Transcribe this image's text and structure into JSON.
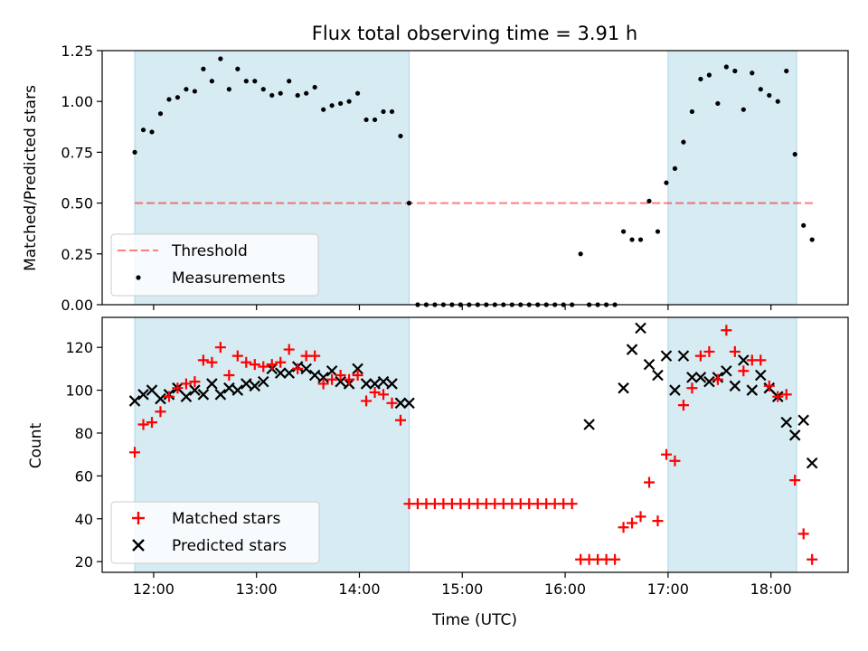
{
  "title": "Flux total observing time = 3.91 h",
  "colors": {
    "shade": "#add8e6",
    "threshold": "#ff0000",
    "measurements": "#000000",
    "matched": "#ff0000",
    "predicted": "#000000"
  },
  "chart_data": [
    {
      "type": "scatter",
      "ylabel": "Matched/Predicted stars",
      "xlabel": "",
      "ylim": [
        0.0,
        1.25
      ],
      "yticks": [
        "0.00",
        "0.25",
        "0.50",
        "0.75",
        "1.00",
        "1.25"
      ],
      "shaded_spans": [
        [
          "11:49",
          "14:29"
        ],
        [
          "17:00",
          "18:15"
        ]
      ],
      "threshold": {
        "name": "Threshold",
        "value": 0.5,
        "x_range": [
          "11:49",
          "18:25"
        ]
      },
      "legend": {
        "placement": "lower-left",
        "entries": [
          "Threshold",
          "Measurements"
        ]
      },
      "series": [
        {
          "name": "Measurements",
          "marker": "dot",
          "x": [
            "11:49",
            "11:54",
            "11:59",
            "12:04",
            "12:09",
            "12:14",
            "12:19",
            "12:24",
            "12:29",
            "12:34",
            "12:39",
            "12:44",
            "12:49",
            "12:54",
            "12:59",
            "13:04",
            "13:09",
            "13:14",
            "13:19",
            "13:24",
            "13:29",
            "13:34",
            "13:39",
            "13:44",
            "13:49",
            "13:54",
            "13:59",
            "14:04",
            "14:09",
            "14:14",
            "14:19",
            "14:24",
            "14:29",
            "14:34",
            "14:39",
            "14:44",
            "14:49",
            "14:54",
            "14:59",
            "15:04",
            "15:09",
            "15:14",
            "15:19",
            "15:24",
            "15:29",
            "15:34",
            "15:39",
            "15:44",
            "15:49",
            "15:54",
            "15:59",
            "16:04",
            "16:09",
            "16:14",
            "16:19",
            "16:24",
            "16:29",
            "16:34",
            "16:39",
            "16:44",
            "16:49",
            "16:54",
            "16:59",
            "17:04",
            "17:09",
            "17:14",
            "17:19",
            "17:24",
            "17:29",
            "17:34",
            "17:39",
            "17:44",
            "17:49",
            "17:54",
            "17:59",
            "18:04",
            "18:09",
            "18:14",
            "18:19",
            "18:24"
          ],
          "y": [
            0.75,
            0.86,
            0.85,
            0.94,
            1.01,
            1.02,
            1.06,
            1.05,
            1.16,
            1.1,
            1.21,
            1.06,
            1.16,
            1.1,
            1.1,
            1.06,
            1.03,
            1.04,
            1.1,
            1.03,
            1.04,
            1.07,
            0.96,
            0.98,
            0.99,
            1.0,
            1.04,
            0.91,
            0.91,
            0.95,
            0.95,
            0.83,
            0.5,
            0,
            0,
            0,
            0,
            0,
            0,
            0,
            0,
            0,
            0,
            0,
            0,
            0,
            0,
            0,
            0,
            0,
            0,
            0,
            0.25,
            0,
            0,
            0,
            0,
            0.36,
            0.32,
            0.32,
            0.51,
            0.36,
            0.6,
            0.67,
            0.8,
            0.95,
            1.11,
            1.13,
            0.99,
            1.17,
            1.15,
            0.96,
            1.14,
            1.06,
            1.03,
            1.0,
            1.15,
            0.74,
            0.39,
            0.32
          ]
        }
      ]
    },
    {
      "type": "scatter",
      "xlabel": "Time (UTC)",
      "ylabel": "Count",
      "xlim": [
        "11:30",
        "18:45"
      ],
      "xticks": [
        "12:00",
        "13:00",
        "14:00",
        "15:00",
        "16:00",
        "17:00",
        "18:00"
      ],
      "ylim": [
        15,
        134
      ],
      "yticks": [
        "20",
        "40",
        "60",
        "80",
        "100",
        "120"
      ],
      "shaded_spans": [
        [
          "11:49",
          "14:29"
        ],
        [
          "17:00",
          "18:15"
        ]
      ],
      "legend": {
        "placement": "lower-left",
        "entries": [
          "Matched stars",
          "Predicted stars"
        ]
      },
      "series": [
        {
          "name": "Matched stars",
          "marker": "plus",
          "x": [
            "11:49",
            "11:54",
            "11:59",
            "12:04",
            "12:09",
            "12:14",
            "12:19",
            "12:24",
            "12:29",
            "12:34",
            "12:39",
            "12:44",
            "12:49",
            "12:54",
            "12:59",
            "13:04",
            "13:09",
            "13:14",
            "13:19",
            "13:24",
            "13:29",
            "13:34",
            "13:39",
            "13:44",
            "13:49",
            "13:54",
            "13:59",
            "14:04",
            "14:09",
            "14:14",
            "14:19",
            "14:24",
            "14:29",
            "14:34",
            "14:39",
            "14:44",
            "14:49",
            "14:54",
            "14:59",
            "15:04",
            "15:09",
            "15:14",
            "15:19",
            "15:24",
            "15:29",
            "15:34",
            "15:39",
            "15:44",
            "15:49",
            "15:54",
            "15:59",
            "16:04",
            "16:09",
            "16:14",
            "16:19",
            "16:24",
            "16:29",
            "16:34",
            "16:39",
            "16:44",
            "16:49",
            "16:54",
            "16:59",
            "17:04",
            "17:09",
            "17:14",
            "17:19",
            "17:24",
            "17:29",
            "17:34",
            "17:39",
            "17:44",
            "17:49",
            "17:54",
            "17:59",
            "18:04",
            "18:09",
            "18:14",
            "18:19",
            "18:24"
          ],
          "y": [
            71,
            84,
            85,
            90,
            97,
            101,
            103,
            104,
            114,
            113,
            120,
            107,
            116,
            113,
            112,
            111,
            112,
            113,
            119,
            110,
            116,
            116,
            103,
            105,
            107,
            105,
            107,
            95,
            99,
            98,
            94,
            86,
            47,
            47,
            47,
            47,
            47,
            47,
            47,
            47,
            47,
            47,
            47,
            47,
            47,
            47,
            47,
            47,
            47,
            47,
            47,
            47,
            21,
            21,
            21,
            21,
            21,
            36,
            38,
            41,
            57,
            39,
            70,
            67,
            93,
            101,
            116,
            118,
            105,
            128,
            118,
            109,
            114,
            114,
            102,
            97,
            98,
            58,
            33,
            21
          ]
        },
        {
          "name": "Predicted stars",
          "marker": "x",
          "x": [
            "11:49",
            "11:54",
            "11:59",
            "12:04",
            "12:09",
            "12:14",
            "12:19",
            "12:24",
            "12:29",
            "12:34",
            "12:39",
            "12:44",
            "12:49",
            "12:54",
            "12:59",
            "13:04",
            "13:09",
            "13:14",
            "13:19",
            "13:24",
            "13:29",
            "13:34",
            "13:39",
            "13:44",
            "13:49",
            "13:54",
            "13:59",
            "14:04",
            "14:09",
            "14:14",
            "14:19",
            "14:24",
            "14:29",
            "16:14",
            "16:34",
            "16:39",
            "16:44",
            "16:49",
            "16:54",
            "16:59",
            "17:04",
            "17:09",
            "17:14",
            "17:19",
            "17:24",
            "17:29",
            "17:34",
            "17:39",
            "17:44",
            "17:49",
            "17:54",
            "17:59",
            "18:04",
            "18:09",
            "18:14",
            "18:19",
            "18:24"
          ],
          "y": [
            95,
            98,
            100,
            96,
            98,
            101,
            97,
            100,
            98,
            103,
            98,
            101,
            100,
            103,
            102,
            104,
            110,
            108,
            108,
            111,
            110,
            107,
            106,
            109,
            104,
            103,
            110,
            103,
            103,
            104,
            103,
            94,
            94,
            84,
            101,
            119,
            129,
            112,
            107,
            116,
            100,
            116,
            106,
            106,
            104,
            106,
            109,
            102,
            114,
            100,
            107,
            101,
            97,
            85,
            79,
            86,
            66
          ]
        }
      ]
    }
  ]
}
